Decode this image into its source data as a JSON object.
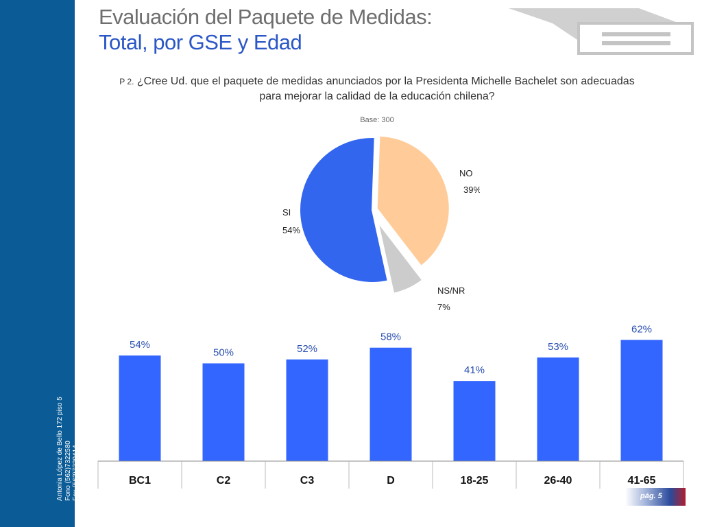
{
  "title": {
    "line1": "Evaluación del Paquete de Medidas:",
    "line2": "Total, por GSE y Edad"
  },
  "question": {
    "number": "P 2.",
    "text": "¿Cree Ud. que el paquete de medidas anunciados por la Presidenta Michelle Bachelet son adecuadas para mejorar la calidad de la educación chilena?"
  },
  "base": "Base: 300",
  "contact": {
    "address": "Antonia López de Bello 172 piso 5",
    "phone": "Fono (562)7322580",
    "fax": "Fax (562)7320414",
    "email": "e-mail: info@timeresearch.cl",
    "web": "http: www.timeresearch.cl"
  },
  "footer": {
    "page": "pág. 5"
  },
  "colors": {
    "sidebar": "#0a5b96",
    "bar": "#3366ff",
    "si": "#3366ee",
    "no": "#ffcc99",
    "nsnr": "#cccccc",
    "title_blue": "#2a56c6"
  },
  "chart_data": [
    {
      "type": "pie",
      "slices": [
        {
          "label": "NO",
          "value": 39,
          "value_label": "39%",
          "color": "#ffcc99"
        },
        {
          "label": "NS/NR",
          "value": 7,
          "value_label": "7%",
          "color": "#cccccc"
        },
        {
          "label": "SI",
          "value": 54,
          "value_label": "54%",
          "color": "#3366ee"
        }
      ]
    },
    {
      "type": "bar",
      "categories": [
        "BC1",
        "C2",
        "C3",
        "D",
        "18-25",
        "26-40",
        "41-65"
      ],
      "values": [
        54,
        50,
        52,
        58,
        41,
        53,
        62
      ],
      "value_labels": [
        "54%",
        "50%",
        "52%",
        "58%",
        "41%",
        "53%",
        "62%"
      ],
      "ylim": [
        0,
        70
      ]
    }
  ]
}
